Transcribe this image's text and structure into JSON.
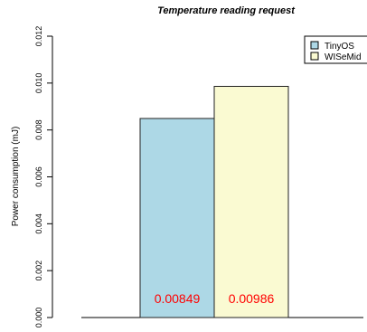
{
  "chart_data": {
    "type": "bar",
    "title": "Temperature reading request",
    "xlabel": "",
    "ylabel": "Power consumption (mJ)",
    "ylim": [
      0,
      0.012
    ],
    "yticks": [
      "0.000",
      "0.002",
      "0.004",
      "0.006",
      "0.008",
      "0.010",
      "0.012"
    ],
    "categories": [
      "TinyOS",
      "WISeMid"
    ],
    "values": [
      0.00849,
      0.00986
    ],
    "value_labels": [
      "0.00849",
      "0.00986"
    ],
    "grid": false,
    "legend": {
      "position": "top-right",
      "entries": [
        {
          "name": "TinyOS",
          "color": "#add8e6"
        },
        {
          "name": "WISeMid",
          "color": "#fafad2"
        }
      ]
    },
    "colors": {
      "value_label": "#ff0000",
      "bar_stroke": "#222222"
    }
  }
}
